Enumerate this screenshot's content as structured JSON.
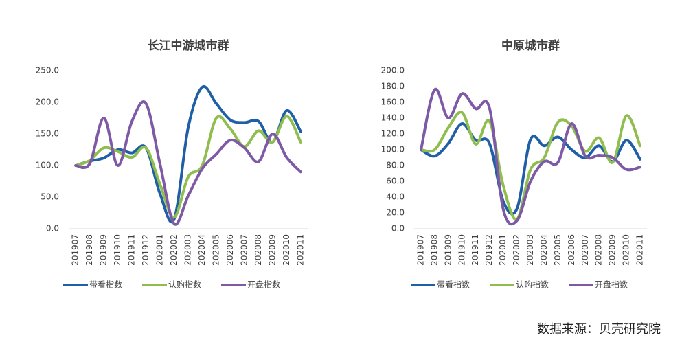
{
  "chart_data": [
    {
      "type": "line",
      "title": "长江中游城市群",
      "categories": [
        "201907",
        "201908",
        "201909",
        "201910",
        "201911",
        "201912",
        "202001",
        "202002",
        "202003",
        "202004",
        "202005",
        "202006",
        "202007",
        "202008",
        "202009",
        "202010",
        "202011"
      ],
      "series": [
        {
          "name": "带看指数",
          "color": "#1f5fa8",
          "values": [
            100,
            107,
            112,
            125,
            120,
            128,
            55,
            15,
            160,
            224,
            198,
            172,
            168,
            170,
            137,
            187,
            154
          ]
        },
        {
          "name": "认购指数",
          "color": "#8fbe4f",
          "values": [
            100,
            108,
            128,
            122,
            113,
            128,
            70,
            18,
            82,
            100,
            175,
            158,
            130,
            155,
            137,
            178,
            137
          ]
        },
        {
          "name": "开盘指数",
          "color": "#7e5aa6",
          "values": [
            100,
            103,
            175,
            100,
            170,
            198,
            102,
            8,
            52,
            95,
            118,
            140,
            128,
            106,
            150,
            113,
            90
          ]
        }
      ],
      "ylim": [
        0,
        250
      ],
      "yticks": [
        {
          "value": 0,
          "label": "0.0"
        },
        {
          "value": 50,
          "label": "50.0"
        },
        {
          "value": 100,
          "label": "100.0"
        },
        {
          "value": 150,
          "label": "150.0"
        },
        {
          "value": 200,
          "label": "200.0"
        },
        {
          "value": 250,
          "label": "250.0"
        }
      ],
      "legend": "bottom"
    },
    {
      "type": "line",
      "title": "中原城市群",
      "categories": [
        "201907",
        "201908",
        "201909",
        "201910",
        "201911",
        "201912",
        "202001",
        "202002",
        "202003",
        "202004",
        "202005",
        "202006",
        "202007",
        "202008",
        "202009",
        "202010",
        "202011"
      ],
      "series": [
        {
          "name": "带看指数",
          "color": "#1f5fa8",
          "values": [
            100,
            92,
            108,
            133,
            112,
            108,
            35,
            25,
            113,
            105,
            116,
            100,
            90,
            105,
            85,
            112,
            88
          ]
        },
        {
          "name": "认购指数",
          "color": "#8fbe4f",
          "values": [
            100,
            100,
            128,
            147,
            107,
            136,
            55,
            12,
            75,
            90,
            135,
            130,
            98,
            115,
            84,
            143,
            105
          ]
        },
        {
          "name": "开盘指数",
          "color": "#7e5aa6",
          "values": [
            100,
            176,
            140,
            171,
            152,
            153,
            25,
            10,
            60,
            85,
            84,
            133,
            92,
            93,
            90,
            75,
            78
          ]
        }
      ],
      "ylim": [
        0,
        200
      ],
      "yticks": [
        {
          "value": 0,
          "label": "0.0"
        },
        {
          "value": 20,
          "label": "20.0"
        },
        {
          "value": 40,
          "label": "40.0"
        },
        {
          "value": 60,
          "label": "60.0"
        },
        {
          "value": 80,
          "label": "80.0"
        },
        {
          "value": 100,
          "label": "100.0"
        },
        {
          "value": 120,
          "label": "120.0"
        },
        {
          "value": 140,
          "label": "140.0"
        },
        {
          "value": 160,
          "label": "160.0"
        },
        {
          "value": 180,
          "label": "180.0"
        },
        {
          "value": 200,
          "label": "200.0"
        }
      ],
      "legend": "bottom"
    }
  ],
  "source": "数据来源：贝壳研究院"
}
